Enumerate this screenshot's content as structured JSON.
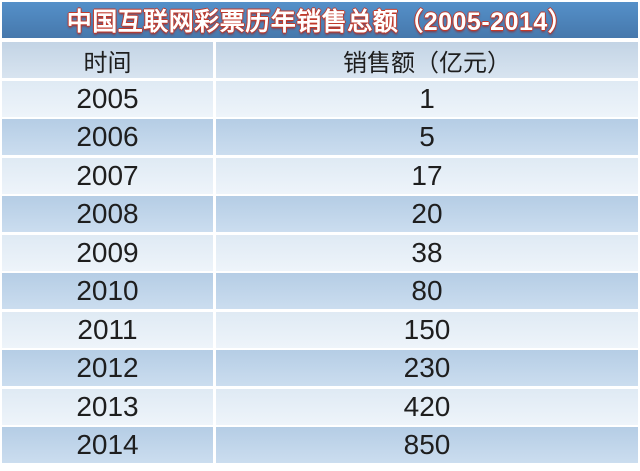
{
  "title": {
    "text": "中国互联网彩票历年销售总额（2005-2014）"
  },
  "table": {
    "headers": [
      "时间",
      "销售额（亿元）"
    ],
    "rows": [
      {
        "year": "2005",
        "value": "1"
      },
      {
        "year": "2006",
        "value": "5"
      },
      {
        "year": "2007",
        "value": "17"
      },
      {
        "year": "2008",
        "value": "20"
      },
      {
        "year": "2009",
        "value": "38"
      },
      {
        "year": "2010",
        "value": "80"
      },
      {
        "year": "2011",
        "value": "150"
      },
      {
        "year": "2012",
        "value": "230"
      },
      {
        "year": "2013",
        "value": "420"
      },
      {
        "year": "2014",
        "value": "850"
      }
    ]
  },
  "colors": {
    "title_bar_bg": "#4E86BE",
    "title_text": "#FFFFFF",
    "title_text_outline": "#C0392B",
    "header_row_bg": "#C9D9E8",
    "row_light_bg": "#E5EEF7",
    "row_dark_bg": "#BCD3E9",
    "cell_text": "#1E1E1E",
    "separator": "#FFFFFF"
  },
  "chart_data": {
    "type": "table",
    "title": "中国互联网彩票历年销售总额（2005-2014）",
    "columns": [
      "时间",
      "销售额（亿元）"
    ],
    "categories": [
      "2005",
      "2006",
      "2007",
      "2008",
      "2009",
      "2010",
      "2011",
      "2012",
      "2013",
      "2014"
    ],
    "values": [
      1,
      5,
      17,
      20,
      38,
      80,
      150,
      230,
      420,
      850
    ],
    "unit": "亿元"
  }
}
